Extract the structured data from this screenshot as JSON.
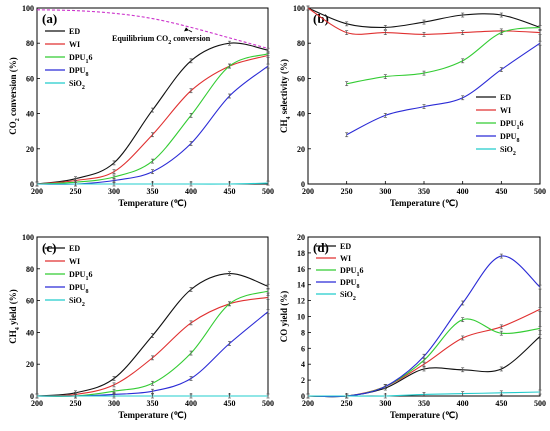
{
  "colors": {
    "ED": "#111111",
    "WI": "#e03030",
    "DPU16": "#33cc33",
    "DPU8": "#2b2bd6",
    "SiO2": "#22cccc",
    "eq": "#cc33cc"
  },
  "chart_data": [
    {
      "type": "line",
      "panel": "(a)",
      "xlabel": "Temperature (℃)",
      "ylabel": "CO2 conversion (%)",
      "xlim": [
        200,
        500
      ],
      "ylim": [
        0,
        100
      ],
      "xticks": [
        200,
        250,
        300,
        350,
        400,
        450,
        500
      ],
      "yticks": [
        0,
        20,
        40,
        60,
        80,
        100
      ],
      "legend_position": "top-left",
      "grid": false,
      "annotation": "Equilibrium CO2 conversion",
      "series": [
        {
          "name": "ED",
          "key": "ED",
          "x": [
            200,
            250,
            300,
            350,
            400,
            450,
            500
          ],
          "y": [
            0,
            3,
            12,
            42,
            70,
            80,
            76
          ]
        },
        {
          "name": "WI",
          "key": "WI",
          "x": [
            200,
            250,
            300,
            350,
            400,
            450,
            500
          ],
          "y": [
            0,
            2,
            7,
            28,
            53,
            67,
            73
          ]
        },
        {
          "name": "DPU16",
          "key": "DPU16",
          "x": [
            200,
            250,
            300,
            350,
            400,
            450,
            500
          ],
          "y": [
            0,
            1,
            4,
            13,
            39,
            67,
            74
          ]
        },
        {
          "name": "DPU8",
          "key": "DPU8",
          "x": [
            200,
            250,
            300,
            350,
            400,
            450,
            500
          ],
          "y": [
            0,
            0,
            2,
            7,
            23,
            50,
            67
          ]
        },
        {
          "name": "SiO2",
          "key": "SiO2",
          "x": [
            200,
            250,
            300,
            350,
            400,
            450,
            500
          ],
          "y": [
            0,
            0,
            0,
            0,
            0,
            0,
            0.5
          ]
        },
        {
          "name": "Equilibrium CO2 conversion",
          "key": "eq",
          "dashed": true,
          "x": [
            200,
            250,
            300,
            350,
            400,
            450,
            500
          ],
          "y": [
            99,
            98.5,
            97,
            94,
            89,
            83,
            77
          ]
        }
      ]
    },
    {
      "type": "line",
      "panel": "(b)",
      "xlabel": "Temperature (℃)",
      "ylabel": "CH4 selectivity (%)",
      "xlim": [
        200,
        500
      ],
      "ylim": [
        0,
        100
      ],
      "xticks": [
        200,
        250,
        300,
        350,
        400,
        450,
        500
      ],
      "yticks": [
        0,
        20,
        40,
        60,
        80,
        100
      ],
      "legend_position": "center-right",
      "grid": false,
      "series": [
        {
          "name": "ED",
          "key": "ED",
          "x": [
            200,
            250,
            300,
            350,
            400,
            450,
            500
          ],
          "y": [
            100,
            91,
            89,
            92,
            96,
            96,
            89
          ]
        },
        {
          "name": "WI",
          "key": "WI",
          "x": [
            200,
            250,
            300,
            350,
            400,
            450,
            500
          ],
          "y": [
            100,
            86,
            86,
            85,
            86,
            87,
            86
          ]
        },
        {
          "name": "DPU16",
          "key": "DPU16",
          "x": [
            250,
            300,
            350,
            400,
            450,
            500
          ],
          "y": [
            57,
            61,
            63,
            70,
            86,
            89
          ]
        },
        {
          "name": "DPU8",
          "key": "DPU8",
          "x": [
            250,
            300,
            350,
            400,
            450,
            500
          ],
          "y": [
            28,
            39,
            44,
            49,
            65,
            80
          ]
        },
        {
          "name": "SiO2",
          "key": "SiO2",
          "x": [],
          "y": []
        }
      ]
    },
    {
      "type": "line",
      "panel": "(c)",
      "xlabel": "Temperature (℃)",
      "ylabel": "CH4 yield (%)",
      "xlim": [
        200,
        500
      ],
      "ylim": [
        0,
        100
      ],
      "xticks": [
        200,
        250,
        300,
        350,
        400,
        450,
        500
      ],
      "yticks": [
        0,
        20,
        40,
        60,
        80,
        100
      ],
      "legend_position": "top-left",
      "grid": false,
      "series": [
        {
          "name": "ED",
          "key": "ED",
          "x": [
            200,
            250,
            300,
            350,
            400,
            450,
            500
          ],
          "y": [
            0,
            2,
            11,
            38,
            67,
            77,
            69
          ]
        },
        {
          "name": "WI",
          "key": "WI",
          "x": [
            200,
            250,
            300,
            350,
            400,
            450,
            500
          ],
          "y": [
            0,
            1,
            7,
            24,
            46,
            58,
            62
          ]
        },
        {
          "name": "DPU16",
          "key": "DPU16",
          "x": [
            200,
            250,
            300,
            350,
            400,
            450,
            500
          ],
          "y": [
            0,
            0,
            3,
            8,
            27,
            58,
            66
          ]
        },
        {
          "name": "DPU8",
          "key": "DPU8",
          "x": [
            200,
            250,
            300,
            350,
            400,
            450,
            500
          ],
          "y": [
            0,
            0,
            1,
            3,
            11,
            33,
            53
          ]
        },
        {
          "name": "SiO2",
          "key": "SiO2",
          "x": [
            200,
            250,
            300,
            350,
            400,
            450,
            500
          ],
          "y": [
            0,
            0,
            0,
            0,
            0,
            0,
            0
          ]
        }
      ]
    },
    {
      "type": "line",
      "panel": "(d)",
      "xlabel": "Temperature (℃)",
      "ylabel": "CO yield (%)",
      "xlim": [
        200,
        500
      ],
      "ylim": [
        0,
        20
      ],
      "xticks": [
        200,
        250,
        300,
        350,
        400,
        450,
        500
      ],
      "yticks": [
        0,
        2,
        4,
        6,
        8,
        10,
        12,
        14,
        16,
        18,
        20
      ],
      "legend_position": "top-left",
      "grid": false,
      "series": [
        {
          "name": "ED",
          "key": "ED",
          "x": [
            200,
            250,
            300,
            350,
            400,
            450,
            500
          ],
          "y": [
            0,
            0,
            1,
            3.4,
            3.3,
            3.4,
            7.5
          ]
        },
        {
          "name": "WI",
          "key": "WI",
          "x": [
            200,
            250,
            300,
            350,
            400,
            450,
            500
          ],
          "y": [
            0,
            0,
            1.2,
            4,
            7.3,
            8.7,
            10.9
          ]
        },
        {
          "name": "DPU16",
          "key": "DPU16",
          "x": [
            200,
            250,
            300,
            350,
            400,
            450,
            500
          ],
          "y": [
            0,
            0,
            1.2,
            4.5,
            9.6,
            7.9,
            8.5
          ]
        },
        {
          "name": "DPU8",
          "key": "DPU8",
          "x": [
            200,
            250,
            300,
            350,
            400,
            450,
            500
          ],
          "y": [
            0,
            0,
            1.2,
            5,
            11.7,
            17.6,
            13.7
          ]
        },
        {
          "name": "SiO2",
          "key": "SiO2",
          "x": [
            200,
            250,
            300,
            350,
            400,
            450,
            500
          ],
          "y": [
            0,
            0,
            0,
            0.2,
            0.3,
            0.4,
            0.5
          ]
        }
      ]
    }
  ]
}
